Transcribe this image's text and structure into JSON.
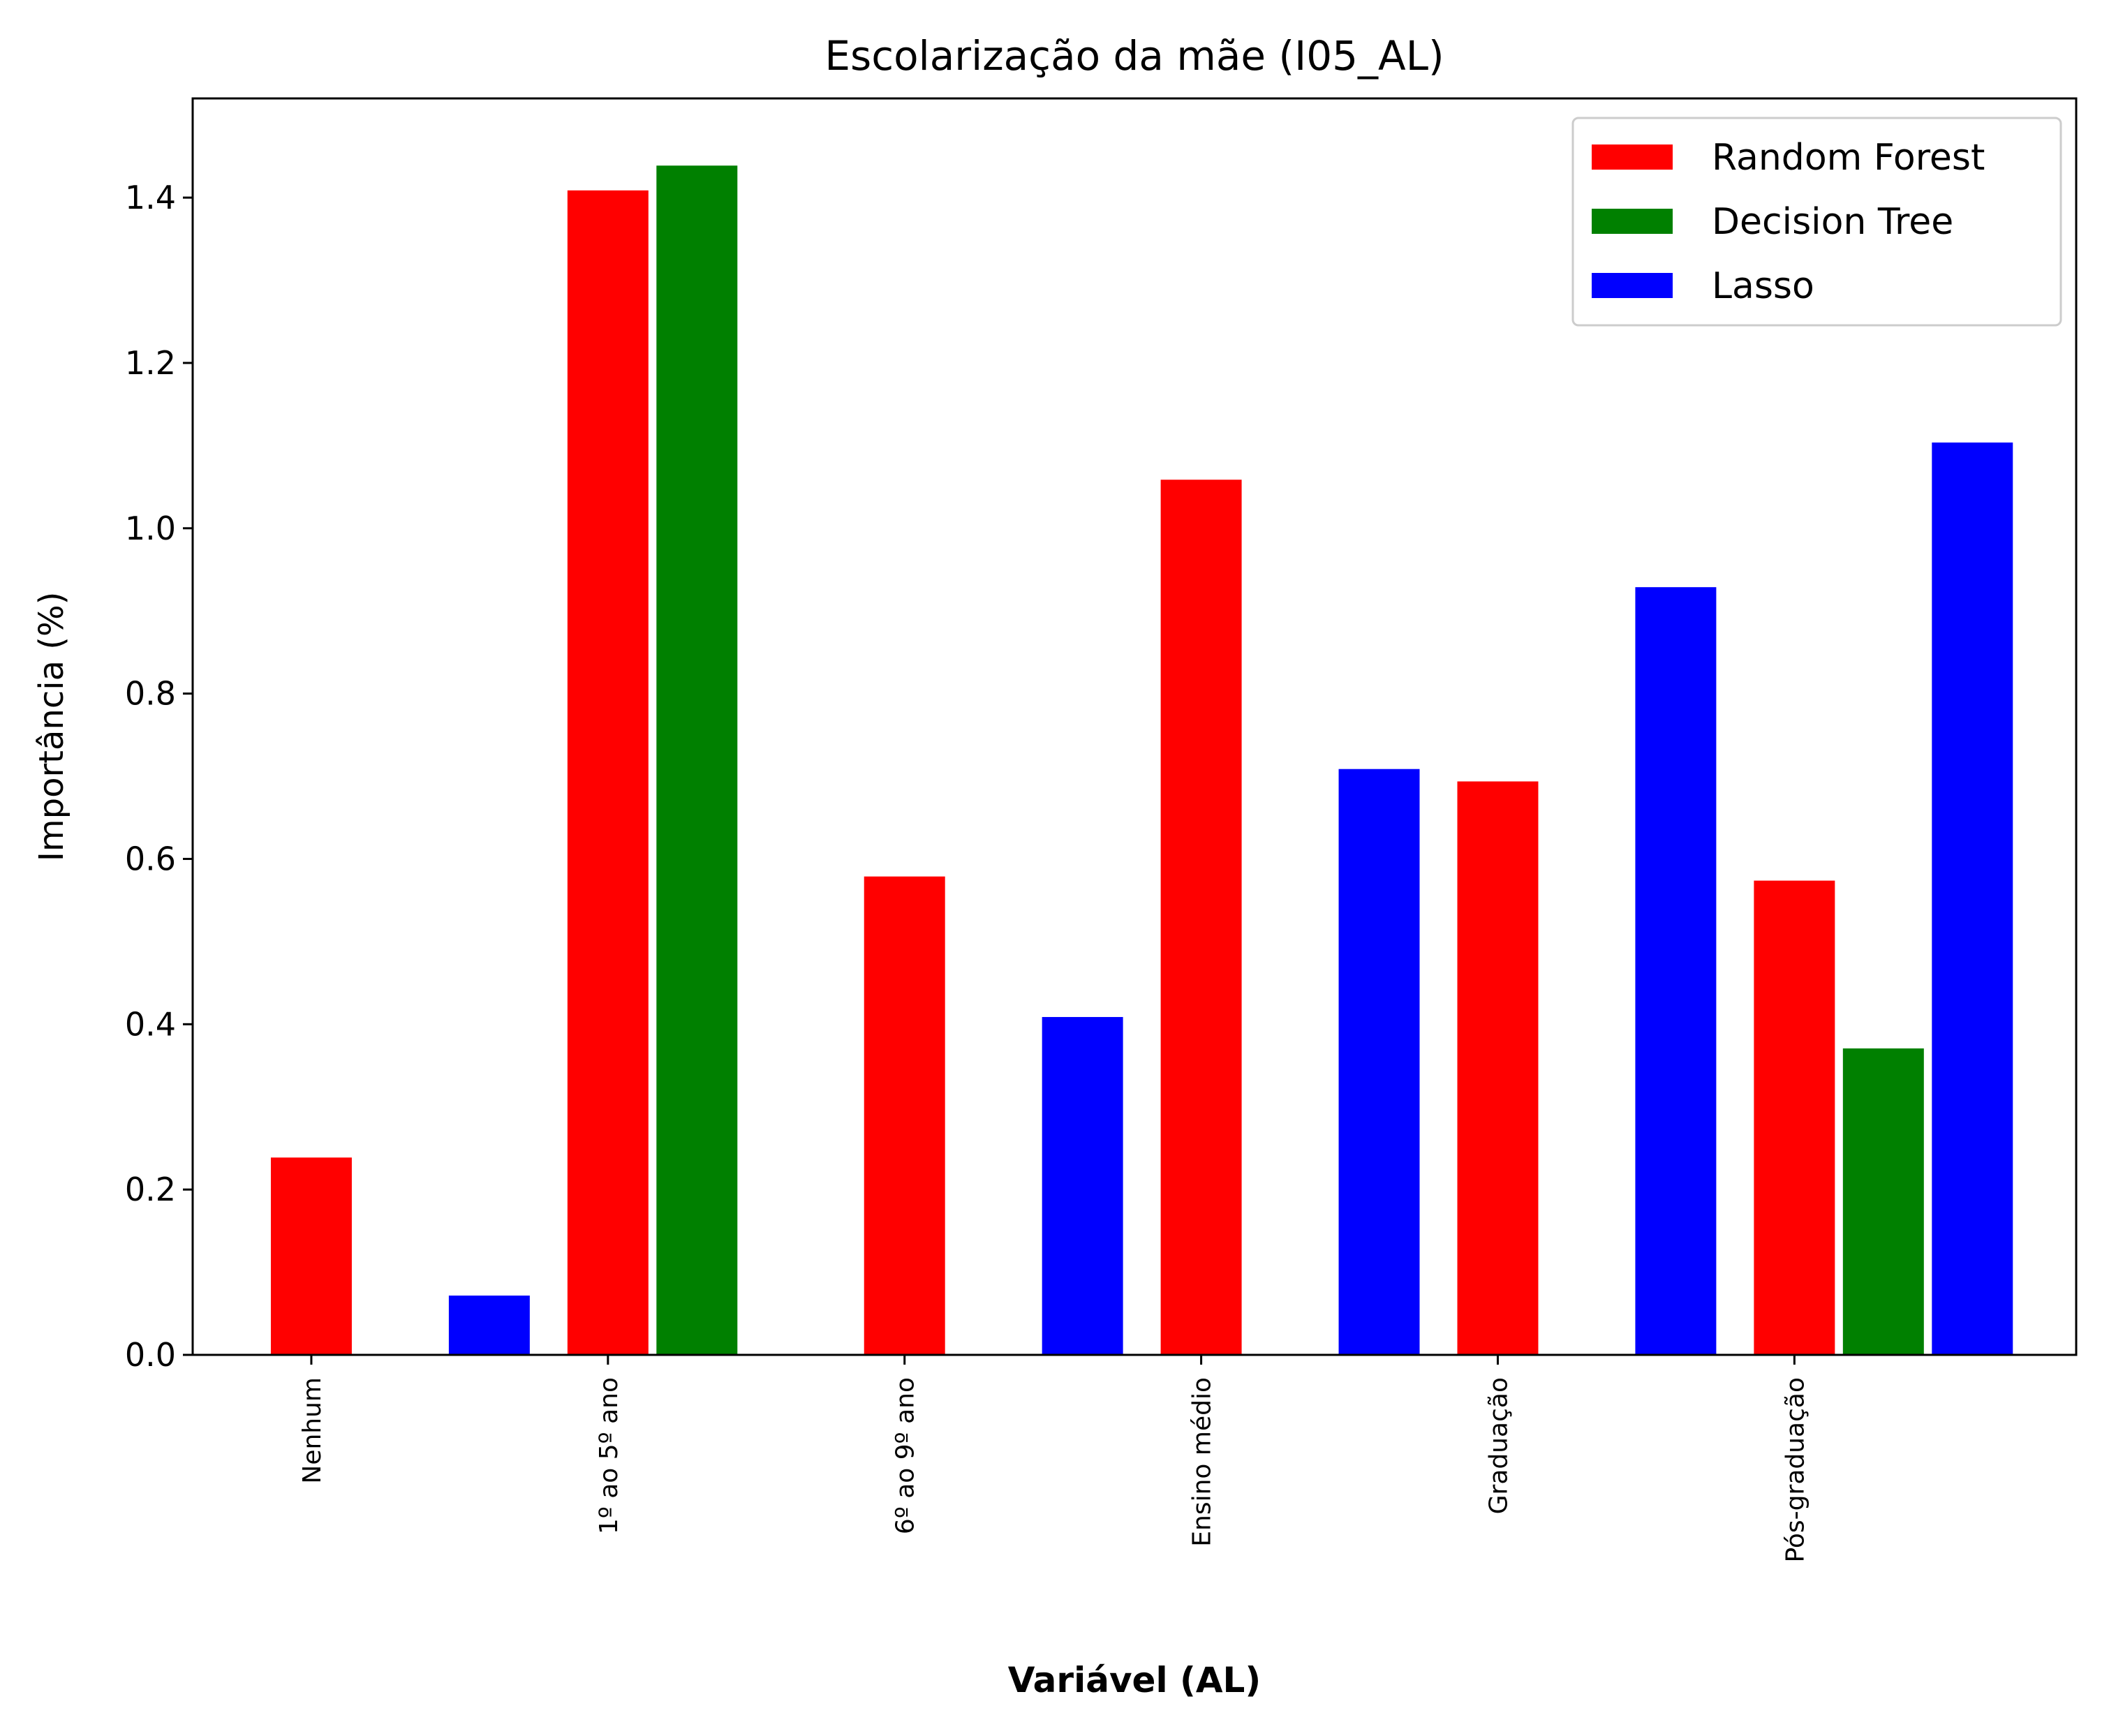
{
  "chart_data": {
    "type": "bar",
    "title": "Escolarização da mãe (I05_AL)",
    "xlabel": "Variável (AL)",
    "ylabel": "Importância (%)",
    "ylim": [
      0,
      1.52
    ],
    "yticks": [
      "0.0",
      "0.2",
      "0.4",
      "0.6",
      "0.8",
      "1.0",
      "1.2",
      "1.4"
    ],
    "categories": [
      "Nenhum",
      "1º ao 5º ano",
      "6º ao 9º ano",
      "Ensino médio",
      "Graduação",
      "Pós-graduação"
    ],
    "series": [
      {
        "name": "Random Forest",
        "color": "#ff0000"
      },
      {
        "name": "Decision Tree",
        "color": "#008000"
      },
      {
        "name": "Lasso",
        "color": "#0000ff"
      }
    ],
    "bars": [
      {
        "x": 0.0,
        "value": 0.24,
        "series": 0
      },
      {
        "x": 0.6,
        "value": 0.073,
        "series": 2
      },
      {
        "x": 1.0,
        "value": 1.41,
        "series": 0
      },
      {
        "x": 1.3,
        "value": 1.44,
        "series": 1
      },
      {
        "x": 2.0,
        "value": 0.58,
        "series": 0
      },
      {
        "x": 2.6,
        "value": 0.41,
        "series": 2
      },
      {
        "x": 3.0,
        "value": 1.06,
        "series": 0
      },
      {
        "x": 3.6,
        "value": 0.71,
        "series": 2
      },
      {
        "x": 4.0,
        "value": 0.695,
        "series": 0
      },
      {
        "x": 4.6,
        "value": 0.93,
        "series": 2
      },
      {
        "x": 5.0,
        "value": 0.575,
        "series": 0
      },
      {
        "x": 5.3,
        "value": 0.372,
        "series": 1
      },
      {
        "x": 5.6,
        "value": 1.105,
        "series": 2
      }
    ],
    "grid": false,
    "legend_position": "top-right"
  }
}
